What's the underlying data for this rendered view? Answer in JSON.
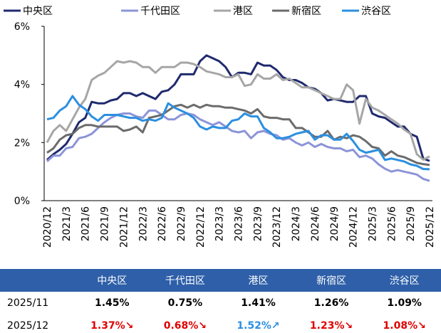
{
  "chart_data": {
    "type": "line",
    "categories": [
      "2020/12",
      null,
      null,
      "2021/3",
      null,
      null,
      "2021/6",
      null,
      null,
      "2021/9",
      null,
      null,
      "2021/12",
      null,
      null,
      "2022/3",
      null,
      null,
      "2022/6",
      null,
      null,
      "2022/9",
      null,
      null,
      "2022/12",
      null,
      null,
      "2023/3",
      null,
      null,
      "2023/6",
      null,
      null,
      "2023/9",
      null,
      null,
      "2023/12",
      null,
      null,
      "2024/3",
      null,
      null,
      "2024/6",
      null,
      null,
      "2024/9",
      null,
      null,
      "2024/12",
      null,
      null,
      "2025/3",
      null,
      null,
      "2025/6",
      null,
      null,
      "2025/9",
      null,
      null,
      "2025/12"
    ],
    "series": [
      {
        "name": "中央区",
        "color": "#1f2a6e",
        "values": [
          1.4,
          1.6,
          1.75,
          1.95,
          2.3,
          2.7,
          2.85,
          3.4,
          3.35,
          3.35,
          3.45,
          3.5,
          3.7,
          3.7,
          3.6,
          3.7,
          3.6,
          3.5,
          3.75,
          3.8,
          4.0,
          4.35,
          4.35,
          4.35,
          4.8,
          5.0,
          4.9,
          4.8,
          4.6,
          4.25,
          4.4,
          4.4,
          4.35,
          4.75,
          4.65,
          4.65,
          4.5,
          4.25,
          4.15,
          4.15,
          4.05,
          3.9,
          3.85,
          3.7,
          3.45,
          3.5,
          3.45,
          3.4,
          3.4,
          3.6,
          3.6,
          3.0,
          2.9,
          2.85,
          2.7,
          2.55,
          2.55,
          2.3,
          2.2,
          1.45,
          1.37
        ]
      },
      {
        "name": "千代田区",
        "color": "#8c94d8",
        "values": [
          1.35,
          1.55,
          1.55,
          1.8,
          1.85,
          2.15,
          2.2,
          2.3,
          2.5,
          2.7,
          2.85,
          2.95,
          3.0,
          3.0,
          2.9,
          2.85,
          3.1,
          3.1,
          2.95,
          2.8,
          2.8,
          2.95,
          3.0,
          2.95,
          2.8,
          2.7,
          2.6,
          2.7,
          2.55,
          2.4,
          2.35,
          2.4,
          2.15,
          2.35,
          2.4,
          2.3,
          2.25,
          2.1,
          2.15,
          2.0,
          1.9,
          2.0,
          1.85,
          1.95,
          1.85,
          1.8,
          1.8,
          1.7,
          1.75,
          1.5,
          1.55,
          1.45,
          1.25,
          1.1,
          1.0,
          1.05,
          1.0,
          0.95,
          0.9,
          0.75,
          0.68
        ]
      },
      {
        "name": "港区",
        "color": "#a6a6a6",
        "values": [
          2.0,
          2.4,
          2.6,
          2.4,
          2.8,
          3.2,
          3.5,
          4.15,
          4.3,
          4.4,
          4.6,
          4.8,
          4.75,
          4.8,
          4.75,
          4.6,
          4.6,
          4.4,
          4.6,
          4.6,
          4.6,
          4.75,
          4.75,
          4.7,
          4.6,
          4.45,
          4.4,
          4.35,
          4.25,
          4.25,
          4.35,
          3.95,
          4.0,
          4.35,
          4.2,
          4.2,
          4.35,
          4.15,
          4.2,
          4.05,
          3.9,
          3.9,
          3.8,
          3.7,
          3.6,
          3.5,
          3.5,
          4.0,
          3.8,
          2.65,
          3.5,
          3.2,
          3.1,
          2.95,
          2.8,
          2.65,
          2.45,
          2.3,
          1.6,
          1.41,
          1.52
        ]
      },
      {
        "name": "新宿区",
        "color": "#6b6b6b",
        "values": [
          1.65,
          1.8,
          2.1,
          2.25,
          2.3,
          2.5,
          2.6,
          2.6,
          2.55,
          2.55,
          2.55,
          2.55,
          2.4,
          2.45,
          2.55,
          2.35,
          2.85,
          2.9,
          2.95,
          3.1,
          3.25,
          3.3,
          3.2,
          3.3,
          3.2,
          3.3,
          3.25,
          3.25,
          3.2,
          3.2,
          3.15,
          3.1,
          3.0,
          3.15,
          2.9,
          2.85,
          2.85,
          2.8,
          2.8,
          2.5,
          2.5,
          2.35,
          2.2,
          2.2,
          2.4,
          2.1,
          2.2,
          2.15,
          2.25,
          2.2,
          2.05,
          1.85,
          1.8,
          1.55,
          1.7,
          1.55,
          1.5,
          1.4,
          1.3,
          1.26,
          1.23
        ]
      },
      {
        "name": "渋谷区",
        "color": "#2b8fe0",
        "values": [
          2.8,
          2.85,
          3.1,
          3.25,
          3.6,
          3.3,
          3.15,
          2.9,
          2.75,
          2.95,
          2.95,
          2.95,
          2.9,
          2.85,
          2.85,
          2.75,
          2.8,
          2.75,
          2.85,
          3.35,
          3.2,
          3.1,
          3.0,
          2.85,
          2.55,
          2.45,
          2.55,
          2.5,
          2.5,
          2.75,
          2.8,
          3.0,
          2.9,
          2.9,
          2.5,
          2.35,
          2.15,
          2.15,
          2.2,
          2.3,
          2.35,
          2.4,
          2.1,
          2.25,
          2.25,
          2.1,
          2.1,
          2.3,
          2.05,
          1.75,
          1.65,
          1.7,
          1.75,
          1.4,
          1.45,
          1.4,
          1.35,
          1.25,
          1.2,
          1.09,
          1.08
        ]
      }
    ],
    "ylim": [
      0,
      6
    ],
    "yticks": [
      {
        "value": 0,
        "label": "0%"
      },
      {
        "value": 2,
        "label": "2%"
      },
      {
        "value": 4,
        "label": "4%"
      },
      {
        "value": 6,
        "label": "6%"
      }
    ],
    "grid": false,
    "legend": "top"
  },
  "table": {
    "header": [
      "中央区",
      "千代田区",
      "港区",
      "新宿区",
      "渋谷区"
    ],
    "rows": [
      {
        "label": "2025/11",
        "cells": [
          "1.45%",
          "0.75%",
          "1.41%",
          "1.26%",
          "1.09%"
        ]
      },
      {
        "label": "2025/12",
        "cells": [
          "1.37%↘",
          "0.68%↘",
          "1.52%↗",
          "1.23%↘",
          "1.08%↘"
        ],
        "colors": [
          "#e00000",
          "#e00000",
          "#2b8fe0",
          "#e00000",
          "#e00000"
        ]
      }
    ]
  }
}
